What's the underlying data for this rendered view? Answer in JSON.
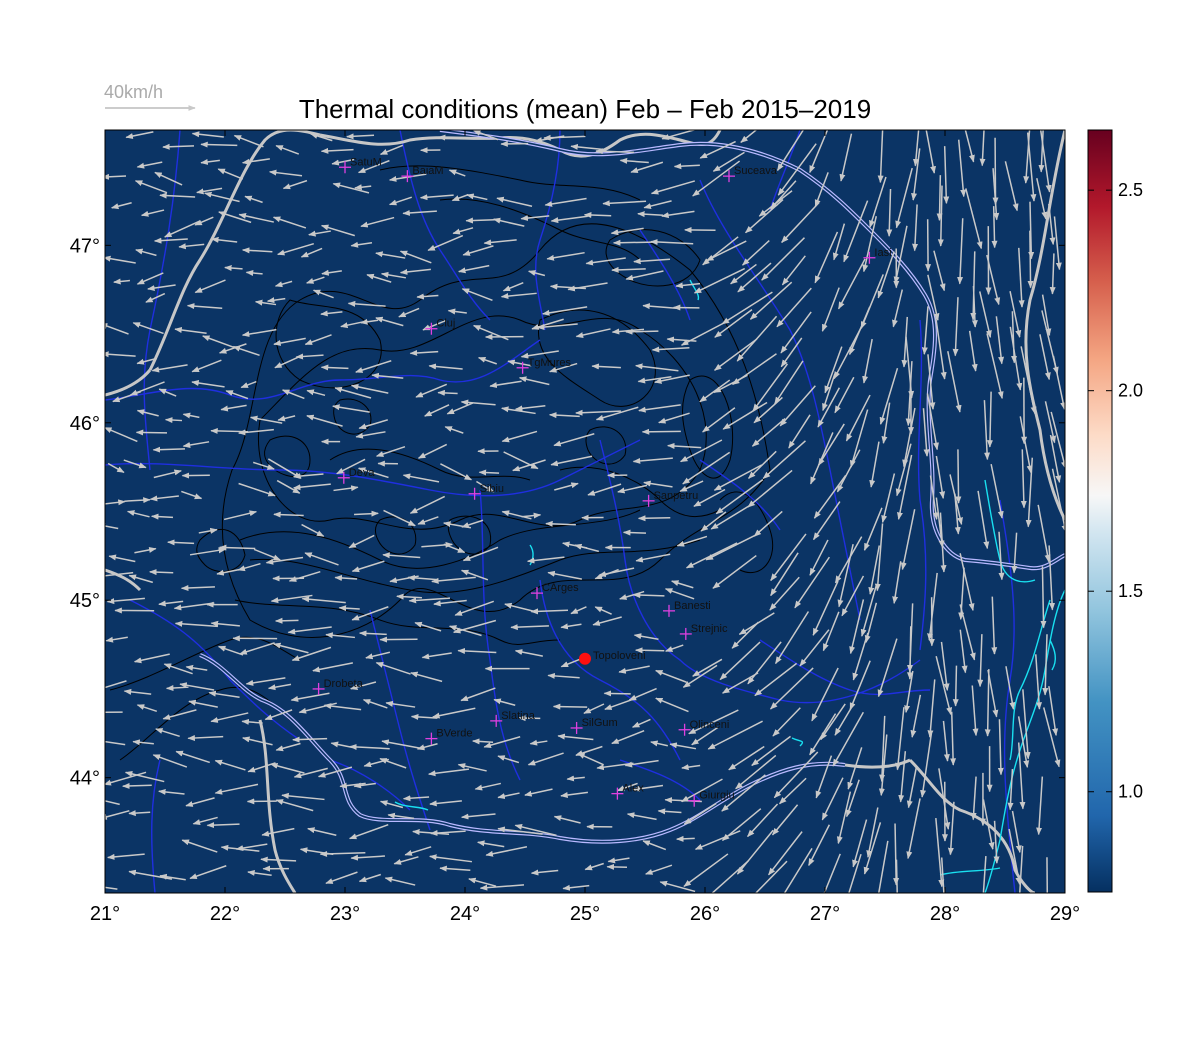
{
  "title": "Thermal conditions (mean) Feb – Feb  2015–2019",
  "reference_arrow_label": "40km/h",
  "map": {
    "lon_range": [
      21,
      29
    ],
    "lat_range": [
      43.35,
      47.65
    ],
    "lon_ticks": [
      "21°",
      "22°",
      "23°",
      "24°",
      "25°",
      "26°",
      "27°",
      "28°",
      "29°"
    ],
    "lon_tick_values": [
      21,
      22,
      23,
      24,
      25,
      26,
      27,
      28,
      29
    ],
    "lat_ticks": [
      "44°",
      "45°",
      "46°",
      "47°"
    ],
    "lat_tick_values": [
      44,
      45,
      46,
      47
    ],
    "background_color": "#0b3465",
    "river_color": "#1f2fe0",
    "border_color": "#c7c7c7",
    "coast_color": "#19e0f0",
    "contour_color": "#000000",
    "arrow_color": "#c9c9c9",
    "marker_color": "#e040e0"
  },
  "colorbar": {
    "range": [
      0.75,
      2.65
    ],
    "tick_values": [
      1.0,
      1.5,
      2.0,
      2.5
    ],
    "tick_labels": [
      "1.0",
      "1.5",
      "2.0",
      "2.5"
    ],
    "colormap": "RdBu_r"
  },
  "cities": [
    {
      "name": "SatuM",
      "lon": 23.0,
      "lat": 47.44
    },
    {
      "name": "BaiaM",
      "lon": 23.52,
      "lat": 47.39
    },
    {
      "name": "Suceava",
      "lon": 26.2,
      "lat": 47.39
    },
    {
      "name": "Iasi",
      "lon": 27.37,
      "lat": 46.93
    },
    {
      "name": "Cluj",
      "lon": 23.72,
      "lat": 46.53
    },
    {
      "name": "TgMures",
      "lon": 24.48,
      "lat": 46.31
    },
    {
      "name": "Deva",
      "lon": 22.99,
      "lat": 45.69
    },
    {
      "name": "Sibiu",
      "lon": 24.08,
      "lat": 45.6
    },
    {
      "name": "Sanpetru",
      "lon": 25.53,
      "lat": 45.56
    },
    {
      "name": "CArges",
      "lon": 24.6,
      "lat": 45.04
    },
    {
      "name": "Banesti",
      "lon": 25.7,
      "lat": 44.94
    },
    {
      "name": "Strejnic",
      "lon": 25.84,
      "lat": 44.81
    },
    {
      "name": "Drobeta",
      "lon": 22.78,
      "lat": 44.5
    },
    {
      "name": "Slatina",
      "lon": 24.26,
      "lat": 44.32
    },
    {
      "name": "SilGum",
      "lon": 24.93,
      "lat": 44.28
    },
    {
      "name": "Olinceni",
      "lon": 25.83,
      "lat": 44.27
    },
    {
      "name": "BVerde",
      "lon": 23.72,
      "lat": 44.22
    },
    {
      "name": "Alex",
      "lon": 25.27,
      "lat": 43.91
    },
    {
      "name": "Giurgiu",
      "lon": 25.91,
      "lat": 43.87
    }
  ],
  "highlight_station": {
    "name": "Topoloveni",
    "lon": 25.0,
    "lat": 44.67,
    "color": "#ff1010"
  }
}
